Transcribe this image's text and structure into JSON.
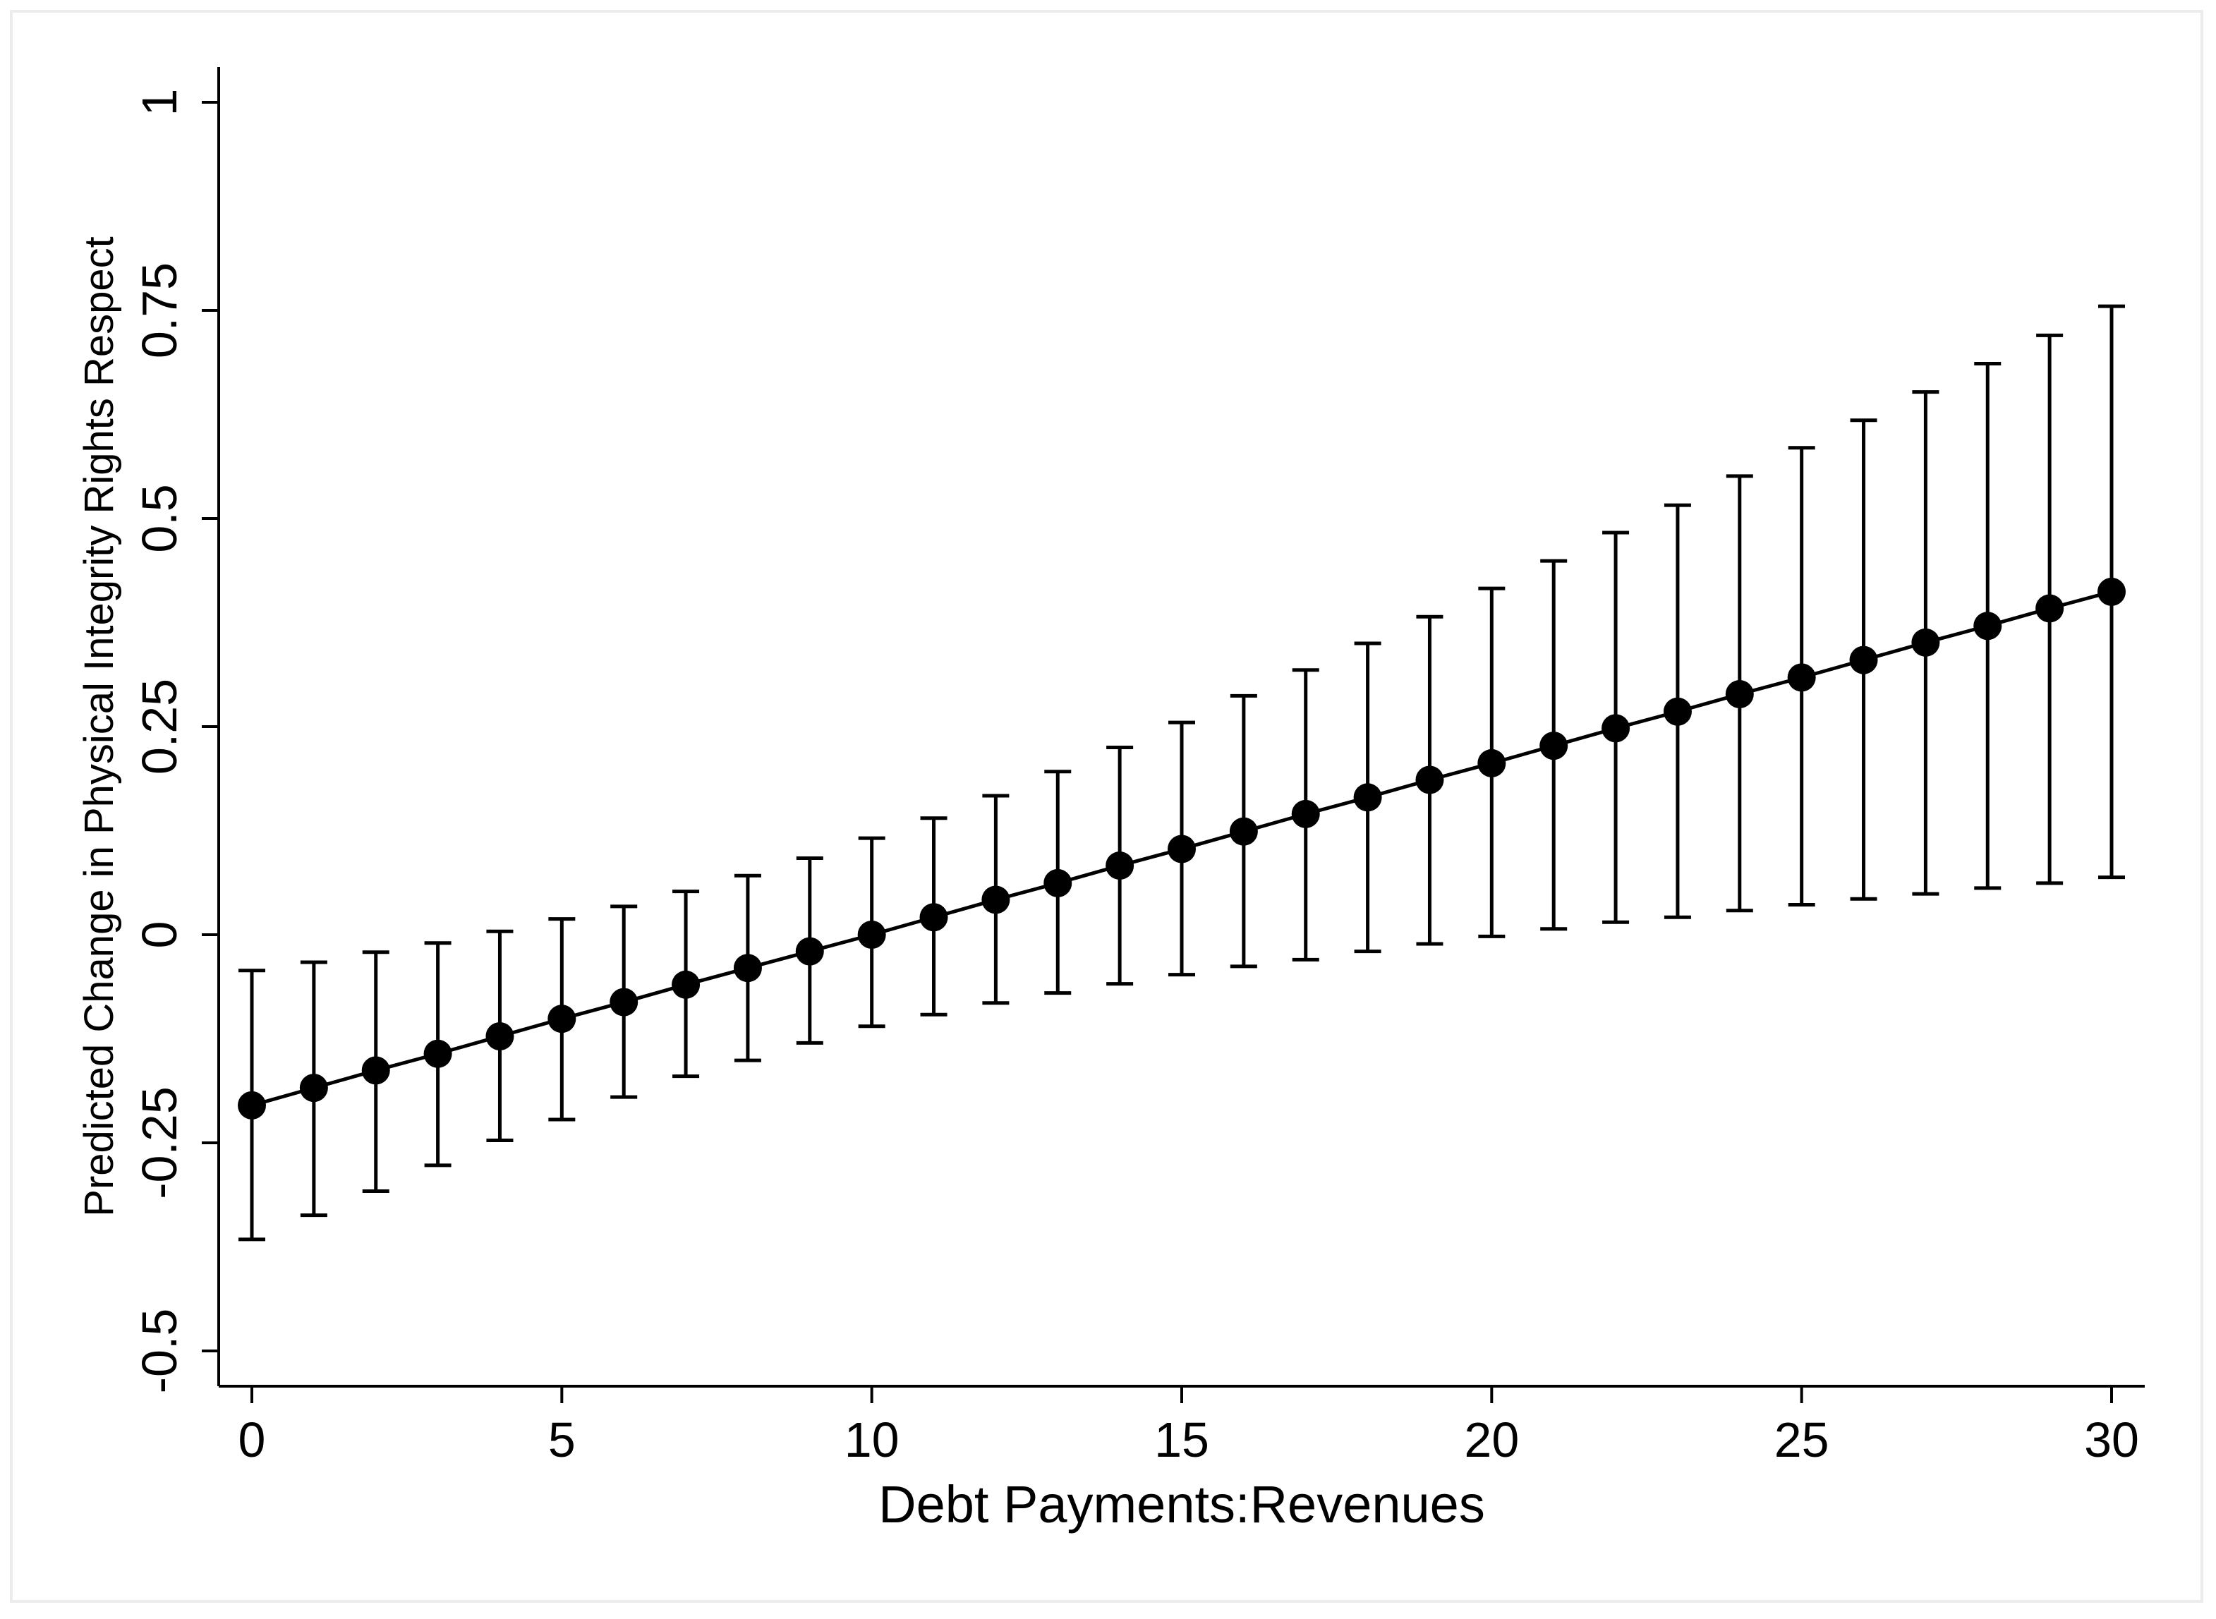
{
  "chart_data": {
    "type": "scatter",
    "title": "",
    "xlabel": "Debt Payments:Revenues",
    "ylabel": "Predicted Change in Physical Integrity Rights Respect",
    "xlim": [
      -0.5,
      30.5
    ],
    "ylim": [
      -0.55,
      1.05
    ],
    "xticks": [
      0,
      5,
      10,
      15,
      20,
      25,
      30
    ],
    "xtick_labels": [
      "0",
      "5",
      "10",
      "15",
      "20",
      "25",
      "30"
    ],
    "yticks": [
      -0.5,
      -0.25,
      0,
      0.25,
      0.5,
      0.75,
      1
    ],
    "ytick_labels": [
      "-0.5",
      "-0.25",
      "0",
      "0.25",
      "0.5",
      "0.75",
      "1"
    ],
    "grid": false,
    "legend": "none",
    "line_connects_points": true,
    "error_bars": true,
    "marker_color": "#000000",
    "line_color": "#000000",
    "x": [
      0,
      1,
      2,
      3,
      4,
      5,
      6,
      7,
      8,
      9,
      10,
      11,
      12,
      13,
      14,
      15,
      16,
      17,
      18,
      19,
      20,
      21,
      22,
      23,
      24,
      25,
      26,
      27,
      28,
      29,
      30
    ],
    "y": [
      -0.205,
      -0.184,
      -0.163,
      -0.143,
      -0.122,
      -0.101,
      -0.081,
      -0.06,
      -0.04,
      -0.02,
      0.0,
      0.021,
      0.042,
      0.062,
      0.083,
      0.103,
      0.124,
      0.145,
      0.165,
      0.186,
      0.206,
      0.227,
      0.248,
      0.268,
      0.289,
      0.309,
      0.33,
      0.351,
      0.371,
      0.392,
      0.412
    ],
    "lower": [
      -0.366,
      -0.337,
      -0.308,
      -0.277,
      -0.247,
      -0.222,
      -0.195,
      -0.17,
      -0.151,
      -0.13,
      -0.11,
      -0.096,
      -0.082,
      -0.07,
      -0.059,
      -0.048,
      -0.038,
      -0.03,
      -0.02,
      -0.011,
      -0.002,
      0.007,
      0.015,
      0.021,
      0.029,
      0.036,
      0.043,
      0.049,
      0.056,
      0.062,
      0.069
    ],
    "upper": [
      -0.043,
      -0.033,
      -0.021,
      -0.01,
      0.004,
      0.019,
      0.034,
      0.052,
      0.071,
      0.092,
      0.116,
      0.14,
      0.167,
      0.196,
      0.225,
      0.255,
      0.287,
      0.318,
      0.35,
      0.382,
      0.416,
      0.449,
      0.483,
      0.516,
      0.551,
      0.585,
      0.618,
      0.652,
      0.686,
      0.72,
      0.755
    ]
  }
}
